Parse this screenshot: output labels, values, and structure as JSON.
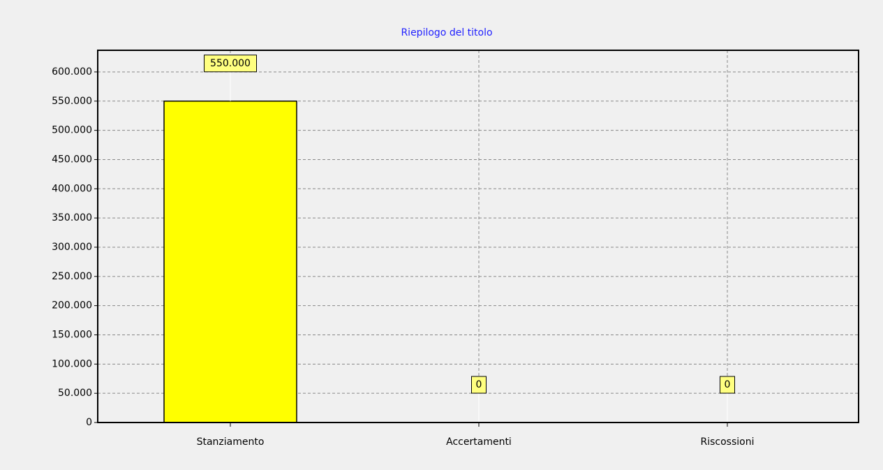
{
  "chart_data": {
    "type": "bar",
    "title": "Riepilogo del titolo",
    "categories": [
      "Stanziamento",
      "Accertamenti",
      "Riscossioni"
    ],
    "values": [
      550000,
      0,
      0
    ],
    "value_labels": [
      "550.000",
      "0",
      "0"
    ],
    "color": "#ffff00",
    "ylim": [
      0,
      637000
    ],
    "yticks": [
      0,
      {
        "value": 50000,
        "label": "50.000"
      },
      {
        "value": 100000,
        "label": "100.000"
      },
      {
        "value": 150000,
        "label": "150.000"
      },
      {
        "value": 200000,
        "label": "200.000"
      },
      {
        "value": 250000,
        "label": "250.000"
      },
      {
        "value": 300000,
        "label": "300.000"
      },
      {
        "value": 350000,
        "label": "350.000"
      },
      {
        "value": 400000,
        "label": "400.000"
      },
      {
        "value": 450000,
        "label": "450.000"
      },
      {
        "value": 500000,
        "label": "500.000"
      },
      {
        "value": 550000,
        "label": "550.000"
      },
      {
        "value": 600000,
        "label": "600.000"
      }
    ],
    "grid": true
  }
}
